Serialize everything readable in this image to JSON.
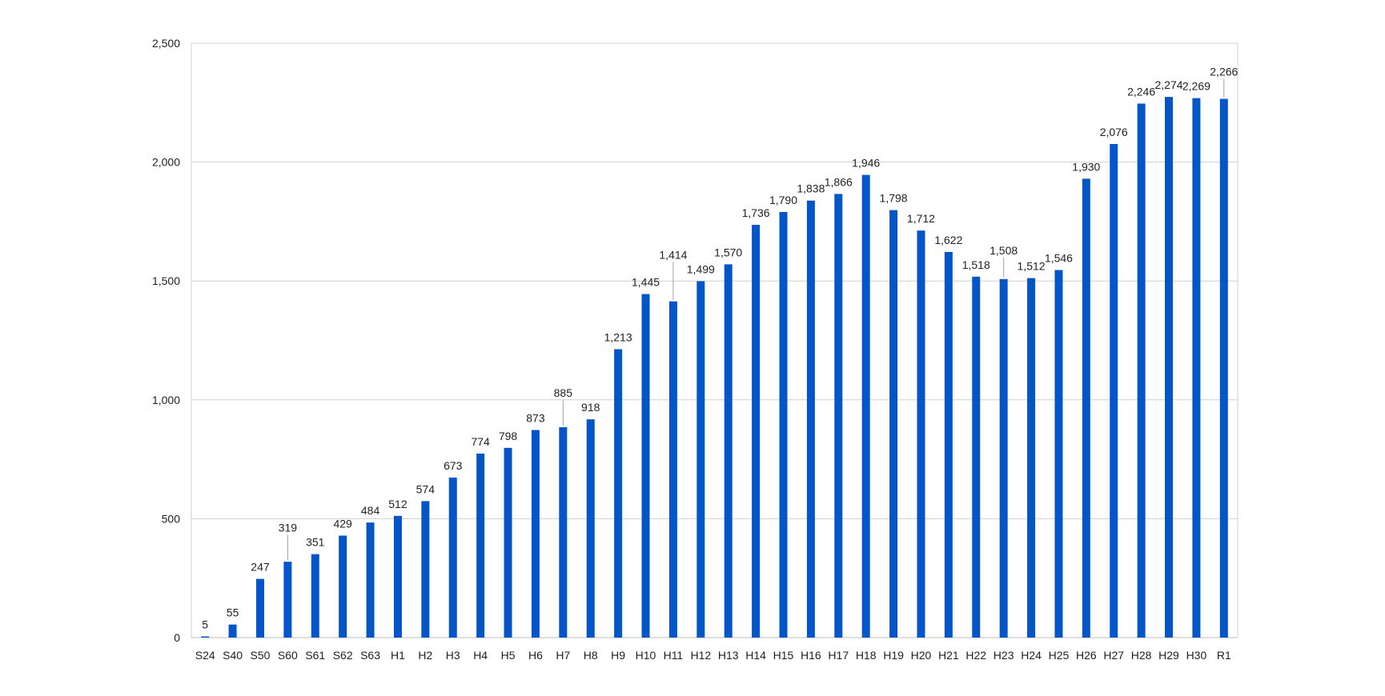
{
  "chart_data": {
    "type": "bar",
    "title": "",
    "xlabel": "",
    "ylabel": "",
    "ylim": [
      0,
      2500
    ],
    "yticks": [
      0,
      500,
      1000,
      1500,
      2000,
      2500
    ],
    "ytick_labels": [
      "0",
      "500",
      "1,000",
      "1,500",
      "2,000",
      "2,500"
    ],
    "grid": true,
    "legend": "none",
    "bar_color": "#0455C8",
    "categories": [
      "S24",
      "S40",
      "S50",
      "S60",
      "S61",
      "S62",
      "S63",
      "H1",
      "H2",
      "H3",
      "H4",
      "H5",
      "H6",
      "H7",
      "H8",
      "H9",
      "H10",
      "H11",
      "H12",
      "H13",
      "H14",
      "H15",
      "H16",
      "H17",
      "H18",
      "H19",
      "H20",
      "H21",
      "H22",
      "H23",
      "H24",
      "H25",
      "H26",
      "H27",
      "H28",
      "H29",
      "H30",
      "R1"
    ],
    "values": [
      5,
      55,
      247,
      319,
      351,
      429,
      484,
      512,
      574,
      673,
      774,
      798,
      873,
      885,
      918,
      1213,
      1445,
      1414,
      1499,
      1570,
      1736,
      1790,
      1838,
      1866,
      1946,
      1798,
      1712,
      1622,
      1518,
      1508,
      1512,
      1546,
      1930,
      2076,
      2246,
      2274,
      2269,
      2266
    ],
    "data_labels": [
      "5",
      "55",
      "247",
      "319",
      "351",
      "429",
      "484",
      "512",
      "574",
      "673",
      "774",
      "798",
      "873",
      "885",
      "918",
      "1,213",
      "1,445",
      "1,414",
      "1,499",
      "1,570",
      "1,736",
      "1,790",
      "1,838",
      "1,866",
      "1,946",
      "1,798",
      "1,712",
      "1,622",
      "1,518",
      "1,508",
      "1,512",
      "1,546",
      "1,930",
      "2,076",
      "2,246",
      "2,274",
      "2,269",
      "2,266"
    ]
  }
}
